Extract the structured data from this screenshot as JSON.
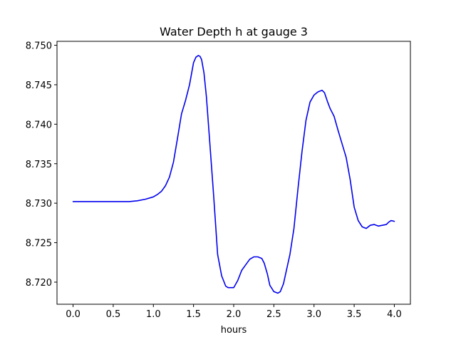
{
  "chart_data": {
    "type": "line",
    "title": "Water Depth h at gauge 3",
    "xlabel": "hours",
    "ylabel": "",
    "xlim": [
      -0.2,
      4.2
    ],
    "ylim": [
      8.7172,
      8.7505
    ],
    "xticks": [
      0.0,
      0.5,
      1.0,
      1.5,
      2.0,
      2.5,
      3.0,
      3.5,
      4.0
    ],
    "xtick_labels": [
      "0.0",
      "0.5",
      "1.0",
      "1.5",
      "2.0",
      "2.5",
      "3.0",
      "3.5",
      "4.0"
    ],
    "yticks": [
      8.72,
      8.725,
      8.73,
      8.735,
      8.74,
      8.745,
      8.75
    ],
    "ytick_labels": [
      "8.720",
      "8.725",
      "8.730",
      "8.735",
      "8.740",
      "8.745",
      "8.750"
    ],
    "grid": false,
    "legend": null,
    "line_color": "#0000ee",
    "series": [
      {
        "name": "",
        "x": [
          0.0,
          0.2,
          0.4,
          0.6,
          0.7,
          0.8,
          0.9,
          1.0,
          1.05,
          1.1,
          1.15,
          1.2,
          1.25,
          1.3,
          1.35,
          1.4,
          1.45,
          1.5,
          1.53,
          1.56,
          1.58,
          1.6,
          1.63,
          1.66,
          1.7,
          1.75,
          1.8,
          1.85,
          1.9,
          1.93,
          1.96,
          2.0,
          2.05,
          2.1,
          2.15,
          2.2,
          2.25,
          2.3,
          2.35,
          2.38,
          2.42,
          2.45,
          2.5,
          2.55,
          2.58,
          2.62,
          2.65,
          2.7,
          2.75,
          2.8,
          2.85,
          2.9,
          2.95,
          3.0,
          3.05,
          3.1,
          3.13,
          3.17,
          3.2,
          3.25,
          3.3,
          3.35,
          3.4,
          3.45,
          3.5,
          3.55,
          3.6,
          3.65,
          3.7,
          3.75,
          3.8,
          3.85,
          3.9,
          3.93,
          3.96,
          4.0
        ],
        "y": [
          8.7302,
          8.7302,
          8.7302,
          8.7302,
          8.7302,
          8.7303,
          8.7305,
          8.7308,
          8.7311,
          8.7315,
          8.7322,
          8.7333,
          8.7352,
          8.7382,
          8.7413,
          8.743,
          8.745,
          8.7478,
          8.7485,
          8.7487,
          8.7486,
          8.7482,
          8.7465,
          8.7435,
          8.738,
          8.731,
          8.7235,
          8.7208,
          8.7195,
          8.7193,
          8.7193,
          8.7193,
          8.7202,
          8.7215,
          8.7222,
          8.7229,
          8.7232,
          8.7232,
          8.723,
          8.7224,
          8.721,
          8.7196,
          8.7188,
          8.7186,
          8.7188,
          8.7198,
          8.7212,
          8.7235,
          8.7268,
          8.7318,
          8.7365,
          8.7405,
          8.7428,
          8.7437,
          8.7441,
          8.7443,
          8.744,
          8.7428,
          8.742,
          8.741,
          8.7392,
          8.7375,
          8.7358,
          8.733,
          8.7295,
          8.7278,
          8.727,
          8.7268,
          8.7272,
          8.7273,
          8.7271,
          8.7272,
          8.7273,
          8.7276,
          8.7278,
          8.7277
        ]
      }
    ]
  }
}
